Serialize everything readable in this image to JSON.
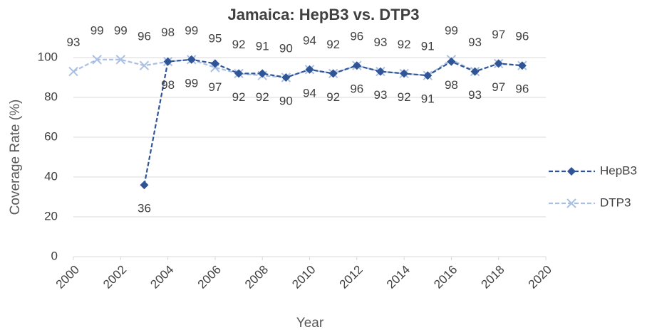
{
  "chart_data": {
    "type": "line",
    "title": "Jamaica: HepB3 vs. DTP3",
    "x_label": "Year",
    "y_label": "Coverage Rate (%)",
    "x": [
      2000,
      2001,
      2002,
      2003,
      2004,
      2005,
      2006,
      2007,
      2008,
      2009,
      2010,
      2011,
      2012,
      2013,
      2014,
      2015,
      2016,
      2017,
      2018,
      2019
    ],
    "series": [
      {
        "name": "HepB3",
        "color": "#2f5597",
        "values": [
          null,
          null,
          null,
          36,
          98,
          99,
          97,
          92,
          92,
          90,
          94,
          92,
          96,
          93,
          92,
          91,
          98,
          93,
          97,
          96
        ]
      },
      {
        "name": "DTP3",
        "color": "#a9c0e4",
        "values": [
          93,
          99,
          99,
          96,
          98,
          99,
          95,
          92,
          91,
          90,
          94,
          92,
          96,
          93,
          92,
          91,
          99,
          93,
          97,
          96
        ]
      }
    ],
    "xlim": [
      2000,
      2020
    ],
    "xticks": [
      2000,
      2002,
      2004,
      2006,
      2008,
      2010,
      2012,
      2014,
      2016,
      2018,
      2020
    ],
    "ylim": [
      0,
      100
    ],
    "yticks": [
      0,
      20,
      40,
      60,
      80,
      100
    ],
    "grid": true,
    "legend": "right"
  }
}
